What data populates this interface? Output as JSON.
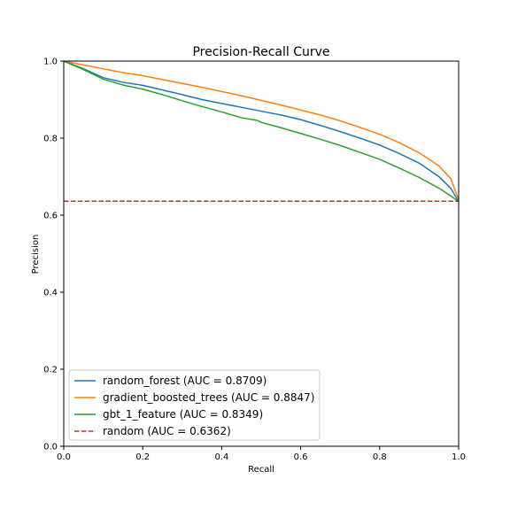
{
  "chart_data": {
    "type": "line",
    "title": "Precision-Recall Curve",
    "xlabel": "Recall",
    "ylabel": "Precision",
    "xlim": [
      0.0,
      1.0
    ],
    "ylim": [
      0.0,
      1.0
    ],
    "xticks": [
      "0.0",
      "0.2",
      "0.4",
      "0.6",
      "0.8",
      "1.0"
    ],
    "yticks": [
      "0.0",
      "0.2",
      "0.4",
      "0.6",
      "0.8",
      "1.0"
    ],
    "grid": false,
    "legend_position": "lower-left",
    "series": [
      {
        "name": "random_forest (AUC = 0.8709)",
        "color": "#1f77b4",
        "style": "solid",
        "x": [
          0.0,
          0.05,
          0.1,
          0.15,
          0.2,
          0.25,
          0.3,
          0.35,
          0.4,
          0.45,
          0.5,
          0.55,
          0.6,
          0.65,
          0.7,
          0.75,
          0.8,
          0.85,
          0.9,
          0.95,
          0.98,
          1.0
        ],
        "y": [
          1.0,
          0.98,
          0.957,
          0.945,
          0.937,
          0.925,
          0.913,
          0.9,
          0.89,
          0.88,
          0.87,
          0.86,
          0.848,
          0.833,
          0.817,
          0.8,
          0.782,
          0.76,
          0.735,
          0.7,
          0.67,
          0.635
        ]
      },
      {
        "name": "gradient_boosted_trees (AUC = 0.8847)",
        "color": "#ff7f0e",
        "style": "solid",
        "x": [
          0.0,
          0.05,
          0.1,
          0.15,
          0.2,
          0.25,
          0.3,
          0.35,
          0.4,
          0.45,
          0.5,
          0.55,
          0.6,
          0.65,
          0.7,
          0.75,
          0.8,
          0.85,
          0.9,
          0.95,
          0.98,
          1.0
        ],
        "y": [
          1.0,
          0.99,
          0.98,
          0.97,
          0.962,
          0.952,
          0.942,
          0.932,
          0.921,
          0.91,
          0.898,
          0.886,
          0.873,
          0.86,
          0.845,
          0.828,
          0.81,
          0.788,
          0.762,
          0.728,
          0.695,
          0.64
        ]
      },
      {
        "name": "gbt_1_feature (AUC = 0.8349)",
        "color": "#2ca02c",
        "style": "solid",
        "x": [
          0.0,
          0.05,
          0.1,
          0.15,
          0.2,
          0.25,
          0.3,
          0.35,
          0.4,
          0.45,
          0.49,
          0.5,
          0.55,
          0.6,
          0.65,
          0.7,
          0.75,
          0.8,
          0.85,
          0.9,
          0.95,
          0.98,
          1.0
        ],
        "y": [
          1.0,
          0.978,
          0.953,
          0.938,
          0.927,
          0.913,
          0.897,
          0.882,
          0.868,
          0.853,
          0.846,
          0.841,
          0.827,
          0.812,
          0.797,
          0.781,
          0.763,
          0.745,
          0.722,
          0.698,
          0.67,
          0.65,
          0.635
        ]
      },
      {
        "name": "random (AUC = 0.6362)",
        "color": "#d62728",
        "style": "dashed",
        "x": [
          0.0,
          1.0
        ],
        "y": [
          0.6362,
          0.6362
        ]
      }
    ]
  }
}
